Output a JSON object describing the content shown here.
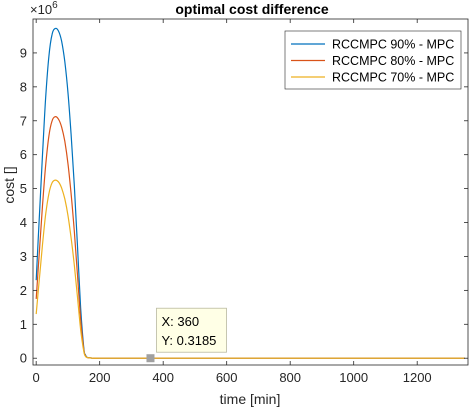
{
  "chart_data": {
    "type": "line",
    "title": "optimal cost difference",
    "xlabel": "time [min]",
    "ylabel": "cost []",
    "y_multiplier": "×10",
    "y_exponent": "6",
    "xlim": [
      -10,
      1360
    ],
    "ylim": [
      -0.2,
      10.0
    ],
    "x_ticks": [
      "0",
      "200",
      "400",
      "600",
      "800",
      "1000",
      "1200"
    ],
    "y_ticks": [
      "0",
      "1",
      "2",
      "3",
      "4",
      "5",
      "6",
      "7",
      "8",
      "9"
    ],
    "grid": false,
    "legend_location": "top-right",
    "x": [
      0,
      10,
      20,
      30,
      40,
      50,
      60,
      70,
      80,
      90,
      100,
      110,
      120,
      130,
      140,
      150,
      155,
      160,
      170,
      180,
      200,
      300,
      400,
      600,
      800,
      1000,
      1200,
      1350
    ],
    "series": [
      {
        "name": "RCCMPC 90% - MPC",
        "color": "#0072BD",
        "values": [
          2.3,
          4.2,
          6.0,
          7.7,
          8.9,
          9.55,
          9.72,
          9.65,
          9.35,
          8.75,
          7.85,
          6.6,
          5.1,
          3.3,
          1.5,
          0.3,
          0.1,
          0.03,
          0.01,
          0.0,
          0.0,
          0.0,
          0.0,
          0.0,
          0.0,
          0.0,
          0.0,
          0.0
        ]
      },
      {
        "name": "RCCMPC 80% - MPC",
        "color": "#D95319",
        "values": [
          1.75,
          3.15,
          4.5,
          5.7,
          6.55,
          7.0,
          7.12,
          7.05,
          6.82,
          6.4,
          5.75,
          4.85,
          3.75,
          2.45,
          1.15,
          0.25,
          0.08,
          0.02,
          0.01,
          0.0,
          0.0,
          0.0,
          0.0,
          0.0,
          0.0,
          0.0,
          0.0,
          0.0
        ]
      },
      {
        "name": "RCCMPC 70% - MPC",
        "color": "#EDB120",
        "values": [
          1.3,
          2.35,
          3.35,
          4.25,
          4.85,
          5.17,
          5.25,
          5.2,
          5.02,
          4.7,
          4.22,
          3.55,
          2.75,
          1.8,
          0.85,
          0.2,
          0.06,
          0.02,
          0.01,
          0.0,
          0.0,
          0.0,
          0.0,
          0.0,
          0.0,
          0.0,
          0.0,
          0.0
        ]
      }
    ],
    "datatip": {
      "x": 360,
      "y": 0.3185,
      "x_text": "X: 360",
      "y_text": "Y: 0.3185"
    }
  }
}
